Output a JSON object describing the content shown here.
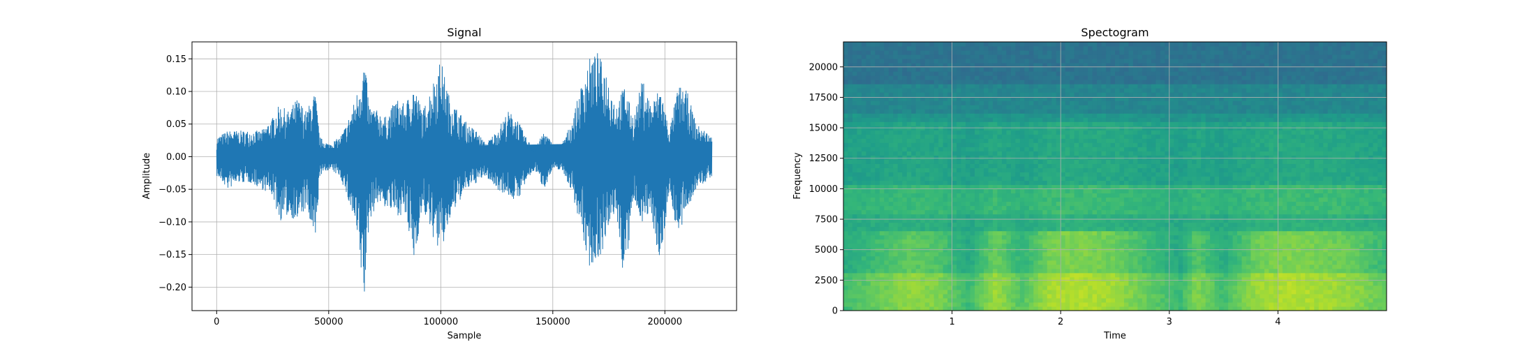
{
  "chart_data": [
    {
      "type": "line",
      "title": "Signal",
      "xlabel": "Sample",
      "ylabel": "Amplitude",
      "xlim": [
        -11000,
        232000
      ],
      "ylim": [
        -0.236,
        0.176
      ],
      "xticks": [
        0,
        50000,
        100000,
        150000,
        200000
      ],
      "xtick_labels": [
        "0",
        "50000",
        "100000",
        "150000",
        "200000"
      ],
      "yticks": [
        -0.2,
        -0.15,
        -0.1,
        -0.05,
        0.0,
        0.05,
        0.1,
        0.15
      ],
      "ytick_labels": [
        "−0.20",
        "−0.15",
        "−0.10",
        "−0.05",
        "0.00",
        "0.05",
        "0.10",
        "0.15"
      ],
      "grid": true,
      "line_color": "#1f77b4",
      "series": [
        {
          "x": [
            0,
            5000,
            10000,
            15000,
            20000,
            25000,
            28000,
            32000,
            36000,
            40000,
            44000,
            46000,
            50000,
            55000,
            58000,
            62000,
            64000,
            66000,
            68000,
            72000,
            76000,
            80000,
            84000,
            88000,
            92000,
            96000,
            100000,
            104000,
            108000,
            112000,
            116000,
            120000,
            125000,
            130000,
            134000,
            138000,
            142000,
            146000,
            150000,
            154000,
            158000,
            162000,
            166000,
            170000,
            174000,
            178000,
            182000,
            186000,
            190000,
            194000,
            198000,
            202000,
            206000,
            210000,
            214000,
            218000,
            221000
          ],
          "env_upper": [
            0.03,
            0.04,
            0.04,
            0.04,
            0.04,
            0.06,
            0.08,
            0.07,
            0.09,
            0.07,
            0.1,
            0.03,
            0.02,
            0.03,
            0.05,
            0.09,
            0.12,
            0.15,
            0.08,
            0.07,
            0.06,
            0.09,
            0.08,
            0.11,
            0.07,
            0.11,
            0.15,
            0.09,
            0.07,
            0.05,
            0.04,
            0.02,
            0.04,
            0.07,
            0.06,
            0.03,
            0.01,
            0.04,
            0.02,
            0.02,
            0.05,
            0.1,
            0.15,
            0.16,
            0.13,
            0.08,
            0.11,
            0.06,
            0.12,
            0.08,
            0.11,
            0.04,
            0.11,
            0.1,
            0.05,
            0.04,
            0.03
          ],
          "env_lower": [
            -0.03,
            -0.05,
            -0.04,
            -0.04,
            -0.05,
            -0.06,
            -0.1,
            -0.09,
            -0.1,
            -0.08,
            -0.14,
            -0.03,
            -0.02,
            -0.03,
            -0.06,
            -0.11,
            -0.17,
            -0.22,
            -0.1,
            -0.07,
            -0.08,
            -0.09,
            -0.09,
            -0.16,
            -0.08,
            -0.12,
            -0.15,
            -0.1,
            -0.07,
            -0.05,
            -0.04,
            -0.03,
            -0.05,
            -0.06,
            -0.07,
            -0.04,
            -0.02,
            -0.05,
            -0.02,
            -0.02,
            -0.05,
            -0.1,
            -0.17,
            -0.16,
            -0.13,
            -0.08,
            -0.2,
            -0.07,
            -0.1,
            -0.09,
            -0.17,
            -0.05,
            -0.13,
            -0.08,
            -0.05,
            -0.04,
            -0.03
          ]
        }
      ]
    },
    {
      "type": "heatmap",
      "title": "Spectogram",
      "xlabel": "Time",
      "ylabel": "Frequency",
      "xlim": [
        0,
        5.0
      ],
      "ylim": [
        0,
        22050
      ],
      "xticks": [
        1,
        2,
        3,
        4
      ],
      "xtick_labels": [
        "1",
        "2",
        "3",
        "4"
      ],
      "yticks": [
        0,
        2500,
        5000,
        7500,
        10000,
        12500,
        15000,
        17500,
        20000
      ],
      "ytick_labels": [
        "0",
        "2500",
        "5000",
        "7500",
        "10000",
        "12500",
        "15000",
        "17500",
        "20000"
      ],
      "grid": true,
      "colormap": "viridis",
      "frequency_bands": [
        {
          "from": 0,
          "to": 3000,
          "level": 0.78
        },
        {
          "from": 3000,
          "to": 6500,
          "level": 0.7
        },
        {
          "from": 6500,
          "to": 8000,
          "level": 0.62
        },
        {
          "from": 8000,
          "to": 10500,
          "level": 0.66
        },
        {
          "from": 10500,
          "to": 15500,
          "level": 0.58
        },
        {
          "from": 15500,
          "to": 16200,
          "level": 0.52
        },
        {
          "from": 16200,
          "to": 18700,
          "level": 0.46
        },
        {
          "from": 18700,
          "to": 22050,
          "level": 0.38
        }
      ],
      "energy_over_time": [
        {
          "t": 0.0,
          "e": 0.35
        },
        {
          "t": 0.3,
          "e": 0.55
        },
        {
          "t": 0.6,
          "e": 0.75
        },
        {
          "t": 0.9,
          "e": 0.65
        },
        {
          "t": 1.15,
          "e": 0.3
        },
        {
          "t": 1.4,
          "e": 0.8
        },
        {
          "t": 1.65,
          "e": 0.45
        },
        {
          "t": 1.9,
          "e": 0.85
        },
        {
          "t": 2.2,
          "e": 0.9
        },
        {
          "t": 2.5,
          "e": 0.8
        },
        {
          "t": 2.8,
          "e": 0.55
        },
        {
          "t": 3.1,
          "e": 0.3
        },
        {
          "t": 3.25,
          "e": 0.7
        },
        {
          "t": 3.5,
          "e": 0.35
        },
        {
          "t": 3.8,
          "e": 0.8
        },
        {
          "t": 4.1,
          "e": 0.9
        },
        {
          "t": 4.4,
          "e": 0.85
        },
        {
          "t": 4.7,
          "e": 0.75
        },
        {
          "t": 5.0,
          "e": 0.5
        }
      ]
    }
  ]
}
